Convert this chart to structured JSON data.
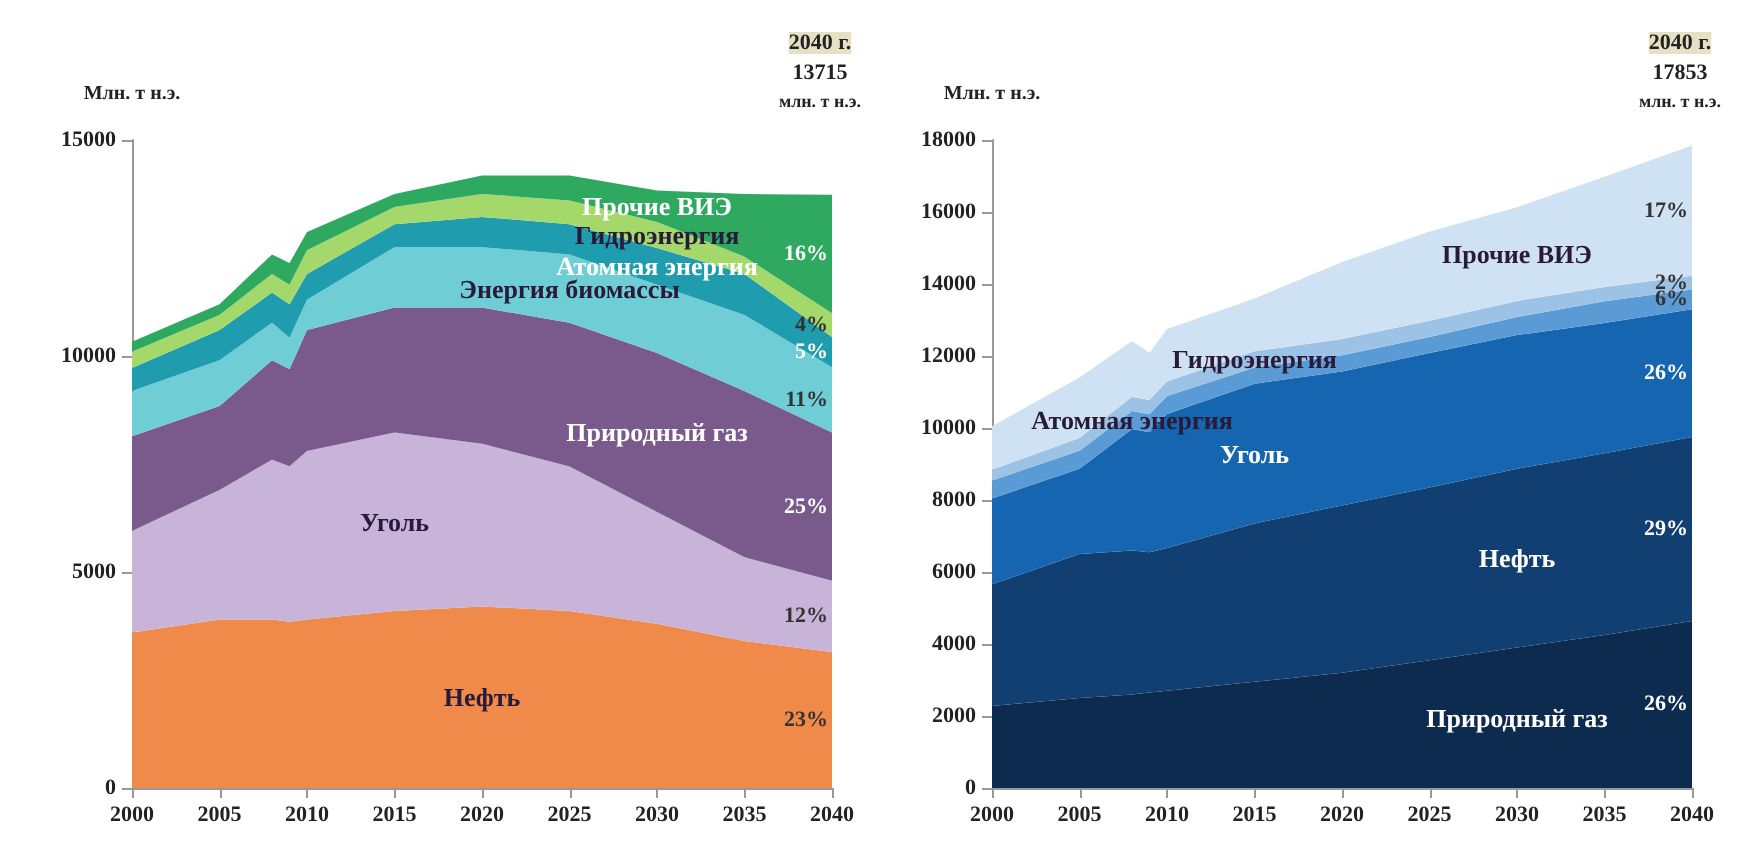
{
  "chart_data": [
    {
      "type": "area",
      "stacked": true,
      "ylabel": "Млн. т н.э.",
      "x": [
        2000,
        2005,
        2008,
        2009,
        2010,
        2015,
        2020,
        2025,
        2030,
        2035,
        2040
      ],
      "xlim": [
        2000,
        2040
      ],
      "xticks": [
        2000,
        2005,
        2010,
        2015,
        2020,
        2025,
        2030,
        2035,
        2040
      ],
      "ylim": [
        0,
        15000
      ],
      "yticks": [
        0,
        5000,
        10000,
        15000
      ],
      "series": [
        {
          "name": "Нефть",
          "color": "#f08a4b",
          "values": [
            3600,
            3900,
            3900,
            3850,
            3900,
            4100,
            4200,
            4100,
            3800,
            3400,
            3150
          ]
        },
        {
          "name": "Уголь",
          "color": "#c8b4d8",
          "values": [
            2350,
            3000,
            3700,
            3600,
            3900,
            4130,
            3770,
            3340,
            2590,
            1940,
            1650
          ]
        },
        {
          "name": "Природный газ",
          "color": "#7a5a8c",
          "values": [
            2190,
            1940,
            2300,
            2250,
            2800,
            2890,
            3150,
            3330,
            3680,
            3850,
            3430
          ]
        },
        {
          "name": "Энергия биомассы",
          "color": "#6fcdd6",
          "values": [
            1050,
            1060,
            870,
            720,
            700,
            1400,
            1400,
            1580,
            1580,
            1760,
            1510
          ]
        },
        {
          "name": "Атомная энергия",
          "color": "#1f9cae",
          "values": [
            530,
            700,
            700,
            780,
            600,
            530,
            700,
            700,
            850,
            950,
            700
          ]
        },
        {
          "name": "Гидроэнергия",
          "color": "#a5d86a",
          "values": [
            380,
            350,
            430,
            450,
            550,
            400,
            530,
            550,
            600,
            400,
            550
          ]
        },
        {
          "name": "Прочие ВИЭ",
          "color": "#2fa860",
          "values": [
            230,
            250,
            450,
            500,
            420,
            300,
            430,
            580,
            730,
            1450,
            2740
          ]
        }
      ],
      "annotations": [
        "2040 г.",
        "13715",
        "млн. т н.э.",
        "23%",
        "12%",
        "25%",
        "11%",
        "5%",
        "4%",
        "16%"
      ]
    },
    {
      "type": "area",
      "stacked": true,
      "ylabel": "Млн. т н.э.",
      "x": [
        2000,
        2005,
        2008,
        2009,
        2010,
        2015,
        2020,
        2025,
        2030,
        2035,
        2040
      ],
      "xlim": [
        2000,
        2040
      ],
      "xticks": [
        2000,
        2005,
        2010,
        2015,
        2020,
        2025,
        2030,
        2035,
        2040
      ],
      "ylim": [
        0,
        18000
      ],
      "yticks": [
        0,
        2000,
        4000,
        6000,
        8000,
        10000,
        12000,
        14000,
        16000,
        18000
      ],
      "series": [
        {
          "name": "Природный газ",
          "color": "#0d2a4f",
          "values": [
            2280,
            2500,
            2600,
            2650,
            2700,
            2950,
            3200,
            3550,
            3900,
            4250,
            4640
          ]
        },
        {
          "name": "Нефть",
          "color": "#123f72",
          "values": [
            3380,
            4000,
            4000,
            3900,
            3970,
            4400,
            4650,
            4800,
            4970,
            5050,
            5110
          ]
        },
        {
          "name": "Уголь",
          "color": "#1565b0",
          "values": [
            2380,
            2370,
            3370,
            3330,
            3720,
            3880,
            3720,
            3730,
            3710,
            3620,
            3550
          ]
        },
        {
          "name": "Атомная энергия",
          "color": "#5a9bd5",
          "values": [
            500,
            500,
            500,
            500,
            500,
            450,
            450,
            450,
            500,
            600,
            550
          ]
        },
        {
          "name": "Гидроэнергия",
          "color": "#9cc3e6",
          "values": [
            300,
            350,
            400,
            400,
            400,
            450,
            450,
            450,
            450,
            400,
            380
          ]
        },
        {
          "name": "Прочие ВИЭ",
          "color": "#cfe2f3",
          "values": [
            1210,
            1680,
            1550,
            1300,
            1460,
            1470,
            2140,
            2480,
            2600,
            3060,
            3620
          ]
        }
      ],
      "annotations": [
        "2040 г.",
        "17853",
        "млн. т н.э.",
        "26%",
        "29%",
        "26%",
        "6%",
        "2%",
        "17%"
      ]
    }
  ]
}
